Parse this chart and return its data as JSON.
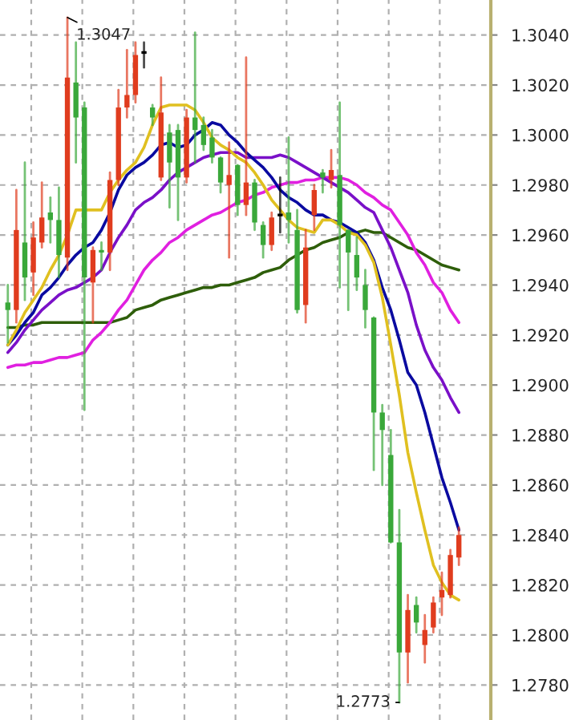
{
  "chart_data": {
    "type": "candlestick",
    "categories": [
      null,
      null,
      null,
      null,
      null,
      null,
      null,
      null,
      null,
      null,
      null,
      null,
      null,
      null,
      null,
      null,
      null,
      null,
      null,
      null,
      null,
      null,
      null,
      null,
      null,
      null,
      null,
      null,
      null,
      null,
      null,
      null,
      null,
      null,
      null,
      null,
      null,
      null,
      null,
      null,
      null,
      null,
      null,
      null,
      null,
      null,
      null,
      null,
      null,
      null,
      null,
      null,
      null,
      null
    ],
    "ohlc": [
      [
        1.2933,
        1.294,
        1.2917,
        1.293
      ],
      [
        1.293,
        1.2978,
        1.2925,
        1.2962
      ],
      [
        1.2957,
        1.2989,
        1.2934,
        1.2943
      ],
      [
        1.2945,
        1.2965,
        1.2936,
        1.2959
      ],
      [
        1.2957,
        1.2981,
        1.2955,
        1.2967
      ],
      [
        1.2969,
        1.2975,
        1.2957,
        1.2966
      ],
      [
        1.2966,
        1.2979,
        1.2943,
        1.2952
      ],
      [
        1.2951,
        1.3047,
        1.2946,
        1.3023
      ],
      [
        1.3021,
        1.3037,
        1.2989,
        1.3007
      ],
      [
        1.3011,
        1.3013,
        1.289,
        1.2943
      ],
      [
        1.2941,
        1.2955,
        1.2925,
        1.2954
      ],
      [
        1.2954,
        1.2957,
        1.2946,
        1.2953
      ],
      [
        1.2953,
        1.2985,
        1.2946,
        1.2982
      ],
      [
        1.2982,
        1.3018,
        1.298,
        1.3011
      ],
      [
        1.3011,
        1.3034,
        1.3007,
        1.3016
      ],
      [
        1.3016,
        1.3037,
        1.3013,
        1.3032
      ],
      [
        1.3033,
        1.3037,
        1.3027,
        1.3033
      ],
      [
        1.3011,
        1.3012,
        1.3004,
        1.3007
      ],
      [
        1.2983,
        1.3023,
        1.2982,
        1.3009
      ],
      [
        1.3001,
        1.3004,
        1.2971,
        1.2989
      ],
      [
        1.3002,
        1.3004,
        1.2966,
        1.2983
      ],
      [
        1.2983,
        1.301,
        1.2981,
        1.3007
      ],
      [
        1.3007,
        1.3041,
        1.2989,
        1.3002
      ],
      [
        1.3004,
        1.3007,
        1.2994,
        1.2996
      ],
      [
        1.2999,
        1.3002,
        1.2989,
        1.2991
      ],
      [
        1.2991,
        1.2991,
        1.2977,
        1.2981
      ],
      [
        1.298,
        1.2997,
        1.2951,
        1.2984
      ],
      [
        1.2988,
        1.2988,
        1.2968,
        1.2972
      ],
      [
        1.2972,
        1.3031,
        1.2968,
        1.2981
      ],
      [
        1.2981,
        1.2982,
        1.2962,
        1.2965
      ],
      [
        1.2964,
        1.2965,
        1.2951,
        1.2956
      ],
      [
        1.2956,
        1.2969,
        1.2954,
        1.2967
      ],
      [
        1.2968,
        1.2983,
        1.2961,
        1.2968
      ],
      [
        1.2969,
        1.2999,
        1.2957,
        1.2966
      ],
      [
        1.2962,
        1.297,
        1.2929,
        1.293
      ],
      [
        1.2932,
        1.2962,
        1.2925,
        1.2955
      ],
      [
        1.2968,
        1.298,
        1.2962,
        1.2978
      ],
      [
        1.2985,
        1.2986,
        1.2977,
        1.2983
      ],
      [
        1.2982,
        1.2994,
        1.2979,
        1.2986
      ],
      [
        1.2984,
        1.3013,
        1.2939,
        1.2964
      ],
      [
        1.2962,
        1.2962,
        1.293,
        1.2953
      ],
      [
        1.2952,
        1.2959,
        1.2938,
        1.2943
      ],
      [
        1.294,
        1.2946,
        1.2923,
        1.293
      ],
      [
        1.2927,
        1.2927,
        1.2866,
        1.2889
      ],
      [
        1.2889,
        1.2892,
        1.286,
        1.2882
      ],
      [
        1.2872,
        1.2882,
        1.2837,
        1.2837
      ],
      [
        1.2837,
        1.285,
        1.2773,
        1.2793
      ],
      [
        1.2793,
        1.2816,
        1.2781,
        1.281
      ],
      [
        1.2812,
        1.2815,
        1.2801,
        1.2805
      ],
      [
        1.2796,
        1.2808,
        1.2789,
        1.2802
      ],
      [
        1.2803,
        1.2815,
        1.2801,
        1.2813
      ],
      [
        1.2815,
        1.2825,
        1.2808,
        1.2818
      ],
      [
        1.2816,
        1.2834,
        1.2815,
        1.2832
      ],
      [
        1.2831,
        1.2843,
        1.2828,
        1.284
      ]
    ],
    "colors": [
      "#3aa83a",
      "#e03c1e",
      "#3aa83a",
      "#e03c1e",
      "#e03c1e",
      "#3aa83a",
      "#3aa83a",
      "#e03c1e",
      "#3aa83a",
      "#3aa83a",
      "#e03c1e",
      "#3aa83a",
      "#e03c1e",
      "#e03c1e",
      "#e03c1e",
      "#e03c1e",
      "#000000",
      "#3aa83a",
      "#e03c1e",
      "#3aa83a",
      "#3aa83a",
      "#e03c1e",
      "#3aa83a",
      "#3aa83a",
      "#3aa83a",
      "#3aa83a",
      "#e03c1e",
      "#3aa83a",
      "#e03c1e",
      "#3aa83a",
      "#3aa83a",
      "#e03c1e",
      "#000000",
      "#3aa83a",
      "#3aa83a",
      "#e03c1e",
      "#e03c1e",
      "#3aa83a",
      "#e03c1e",
      "#3aa83a",
      "#3aa83a",
      "#3aa83a",
      "#3aa83a",
      "#3aa83a",
      "#3aa83a",
      "#3aa83a",
      "#3aa83a",
      "#e03c1e",
      "#3aa83a",
      "#e03c1e",
      "#e03c1e",
      "#e03c1e",
      "#e03c1e",
      "#e03c1e"
    ],
    "series": [
      {
        "type": "line",
        "color": "#2e5e0a",
        "values": [
          1.2923,
          1.2923,
          1.2924,
          1.2924,
          1.2925,
          1.2925,
          1.2925,
          1.2925,
          1.2925,
          1.2925,
          1.2925,
          1.2925,
          1.2925,
          1.2926,
          1.2927,
          1.293,
          1.2931,
          1.2932,
          1.2934,
          1.2935,
          1.2936,
          1.2937,
          1.2938,
          1.2939,
          1.2939,
          1.294,
          1.294,
          1.2941,
          1.2942,
          1.2943,
          1.2945,
          1.2946,
          1.2947,
          1.295,
          1.2952,
          1.2954,
          1.2955,
          1.2957,
          1.2958,
          1.2959,
          1.2961,
          1.2961,
          1.2962,
          1.2961,
          1.2961,
          1.2959,
          1.2957,
          1.2955,
          1.2954,
          1.2952,
          1.295,
          1.2948,
          1.2947,
          1.2946
        ]
      },
      {
        "type": "line",
        "color": "#e020e0",
        "values": [
          1.2907,
          1.2908,
          1.2908,
          1.2909,
          1.2909,
          1.291,
          1.2911,
          1.2911,
          1.2912,
          1.2913,
          1.2918,
          1.2921,
          1.2925,
          1.293,
          1.2934,
          1.294,
          1.2946,
          1.295,
          1.2953,
          1.2957,
          1.2959,
          1.2962,
          1.2964,
          1.2966,
          1.2968,
          1.2969,
          1.2971,
          1.2973,
          1.2974,
          1.2976,
          1.2977,
          1.2979,
          1.298,
          1.2981,
          1.2981,
          1.2982,
          1.2982,
          1.2983,
          1.2983,
          1.2983,
          1.2982,
          1.298,
          1.2977,
          1.2975,
          1.2972,
          1.297,
          1.2965,
          1.296,
          1.2953,
          1.2948,
          1.2941,
          1.2937,
          1.293,
          1.2925
        ]
      },
      {
        "type": "line",
        "color": "#7a10c8",
        "values": [
          1.2913,
          1.2917,
          1.2922,
          1.2926,
          1.293,
          1.2933,
          1.2936,
          1.2938,
          1.2939,
          1.2941,
          1.2943,
          1.2946,
          1.2953,
          1.2959,
          1.2964,
          1.297,
          1.2973,
          1.2975,
          1.2978,
          1.2982,
          1.2985,
          1.2987,
          1.2989,
          1.2991,
          1.2992,
          1.2993,
          1.2993,
          1.2993,
          1.2991,
          1.2991,
          1.2991,
          1.2991,
          1.2992,
          1.2991,
          1.2989,
          1.2987,
          1.2985,
          1.2983,
          1.2981,
          1.2979,
          1.2977,
          1.2974,
          1.2971,
          1.2969,
          1.2962,
          1.2955,
          1.2946,
          1.2937,
          1.2924,
          1.2914,
          1.2907,
          1.2902,
          1.2895,
          1.2889
        ]
      },
      {
        "type": "line",
        "color": "#0a0aa0",
        "values": [
          1.2916,
          1.292,
          1.2925,
          1.2929,
          1.2936,
          1.2939,
          1.2943,
          1.2948,
          1.2952,
          1.2955,
          1.2957,
          1.2962,
          1.2969,
          1.2978,
          1.2984,
          1.2987,
          1.2989,
          1.2992,
          1.2996,
          1.2997,
          1.2995,
          1.2996,
          1.3,
          1.3002,
          1.3005,
          1.3004,
          1.3,
          1.2997,
          1.2993,
          1.299,
          1.2987,
          1.2983,
          1.2978,
          1.2975,
          1.2973,
          1.297,
          1.2968,
          1.2968,
          1.2966,
          1.2965,
          1.2963,
          1.2961,
          1.2957,
          1.295,
          1.2939,
          1.293,
          1.2918,
          1.2905,
          1.29,
          1.2889,
          1.2876,
          1.2863,
          1.2853,
          1.2842
        ]
      },
      {
        "type": "line",
        "color": "#e0c020",
        "values": [
          1.2916,
          1.2922,
          1.2929,
          1.2934,
          1.2939,
          1.2946,
          1.2952,
          1.296,
          1.297,
          1.297,
          1.297,
          1.297,
          1.2977,
          1.2982,
          1.2986,
          1.2989,
          1.2995,
          1.3004,
          1.3011,
          1.3012,
          1.3012,
          1.3012,
          1.301,
          1.3005,
          1.2999,
          1.2996,
          1.2994,
          1.2991,
          1.2989,
          1.2985,
          1.298,
          1.2974,
          1.297,
          1.2966,
          1.2963,
          1.2962,
          1.2961,
          1.2966,
          1.2966,
          1.2964,
          1.2961,
          1.296,
          1.2956,
          1.2949,
          1.2935,
          1.2916,
          1.2896,
          1.2873,
          1.2857,
          1.2842,
          1.2828,
          1.2821,
          1.2816,
          1.2814
        ]
      }
    ],
    "ylim": [
      1.2766,
      1.3054
    ],
    "yticks": [
      {
        "value": 1.278,
        "label": "1.2780"
      },
      {
        "value": 1.28,
        "label": "1.2800"
      },
      {
        "value": 1.282,
        "label": "1.2820"
      },
      {
        "value": 1.284,
        "label": "1.2840"
      },
      {
        "value": 1.286,
        "label": "1.2860"
      },
      {
        "value": 1.288,
        "label": "1.2880"
      },
      {
        "value": 1.29,
        "label": "1.2900"
      },
      {
        "value": 1.292,
        "label": "1.2920"
      },
      {
        "value": 1.294,
        "label": "1.2940"
      },
      {
        "value": 1.296,
        "label": "1.2960"
      },
      {
        "value": 1.298,
        "label": "1.2980"
      },
      {
        "value": 1.3,
        "label": "1.3000"
      },
      {
        "value": 1.302,
        "label": "1.3020"
      },
      {
        "value": 1.304,
        "label": "1.3040"
      }
    ],
    "tick_labels": "y",
    "grid": true,
    "annotations": [
      "1.3047",
      "1.2773"
    ]
  }
}
